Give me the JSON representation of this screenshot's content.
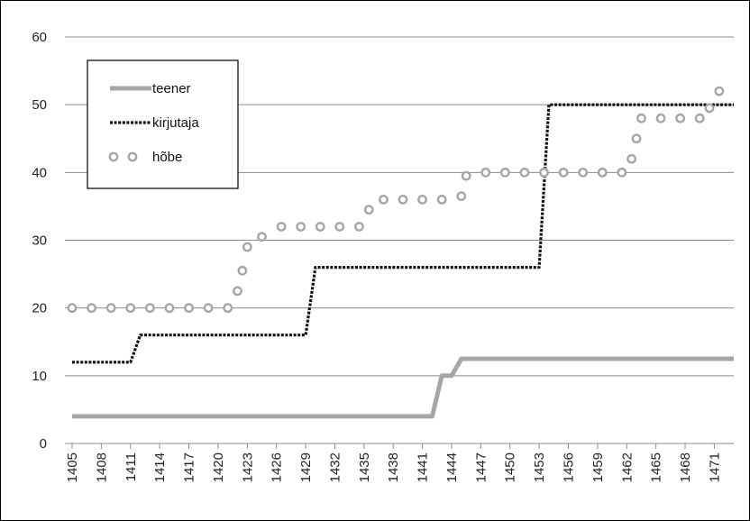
{
  "chart_data": {
    "type": "line",
    "title": "",
    "xlabel": "",
    "ylabel": "",
    "ylim": [
      0,
      60
    ],
    "yticks": [
      0,
      10,
      20,
      30,
      40,
      50,
      60
    ],
    "xlim": [
      1405,
      1473
    ],
    "xticks": [
      1405,
      1408,
      1411,
      1414,
      1417,
      1420,
      1423,
      1426,
      1429,
      1432,
      1435,
      1438,
      1441,
      1444,
      1447,
      1450,
      1453,
      1456,
      1459,
      1462,
      1465,
      1468,
      1471
    ],
    "grid": "horizontal",
    "legend_position": "top-left",
    "series": [
      {
        "name": "teener",
        "style": "solid-thick",
        "color": "#a6a6a6",
        "points": [
          [
            1405,
            4
          ],
          [
            1442,
            4
          ],
          [
            1443,
            10
          ],
          [
            1444,
            10
          ],
          [
            1445,
            12.5
          ],
          [
            1473,
            12.5
          ]
        ]
      },
      {
        "name": "kirjutaja",
        "style": "dotted",
        "color": "#111111",
        "points": [
          [
            1405,
            12
          ],
          [
            1411,
            12
          ],
          [
            1412,
            16
          ],
          [
            1429,
            16
          ],
          [
            1430,
            26
          ],
          [
            1453,
            26
          ],
          [
            1454,
            50
          ],
          [
            1473,
            50
          ]
        ]
      },
      {
        "name": "hõbe",
        "style": "markers",
        "color": "#a6a6a6",
        "points": [
          [
            1405,
            20
          ],
          [
            1407,
            20
          ],
          [
            1409,
            20
          ],
          [
            1411,
            20
          ],
          [
            1413,
            20
          ],
          [
            1415,
            20
          ],
          [
            1417,
            20
          ],
          [
            1419,
            20
          ],
          [
            1421,
            20
          ],
          [
            1422,
            22.5
          ],
          [
            1422.5,
            25.5
          ],
          [
            1423,
            29
          ],
          [
            1424.5,
            30.5
          ],
          [
            1426.5,
            32
          ],
          [
            1428.5,
            32
          ],
          [
            1430.5,
            32
          ],
          [
            1432.5,
            32
          ],
          [
            1434.5,
            32
          ],
          [
            1435.5,
            34.5
          ],
          [
            1437,
            36
          ],
          [
            1439,
            36
          ],
          [
            1441,
            36
          ],
          [
            1443,
            36
          ],
          [
            1445,
            36.5
          ],
          [
            1445.5,
            39.5
          ],
          [
            1447.5,
            40
          ],
          [
            1449.5,
            40
          ],
          [
            1451.5,
            40
          ],
          [
            1453.5,
            40
          ],
          [
            1455.5,
            40
          ],
          [
            1457.5,
            40
          ],
          [
            1459.5,
            40
          ],
          [
            1461.5,
            40
          ],
          [
            1462.5,
            42
          ],
          [
            1463,
            45
          ],
          [
            1463.5,
            48
          ],
          [
            1465.5,
            48
          ],
          [
            1467.5,
            48
          ],
          [
            1469.5,
            48
          ],
          [
            1470.5,
            49.5
          ],
          [
            1471.5,
            52
          ]
        ]
      }
    ]
  }
}
